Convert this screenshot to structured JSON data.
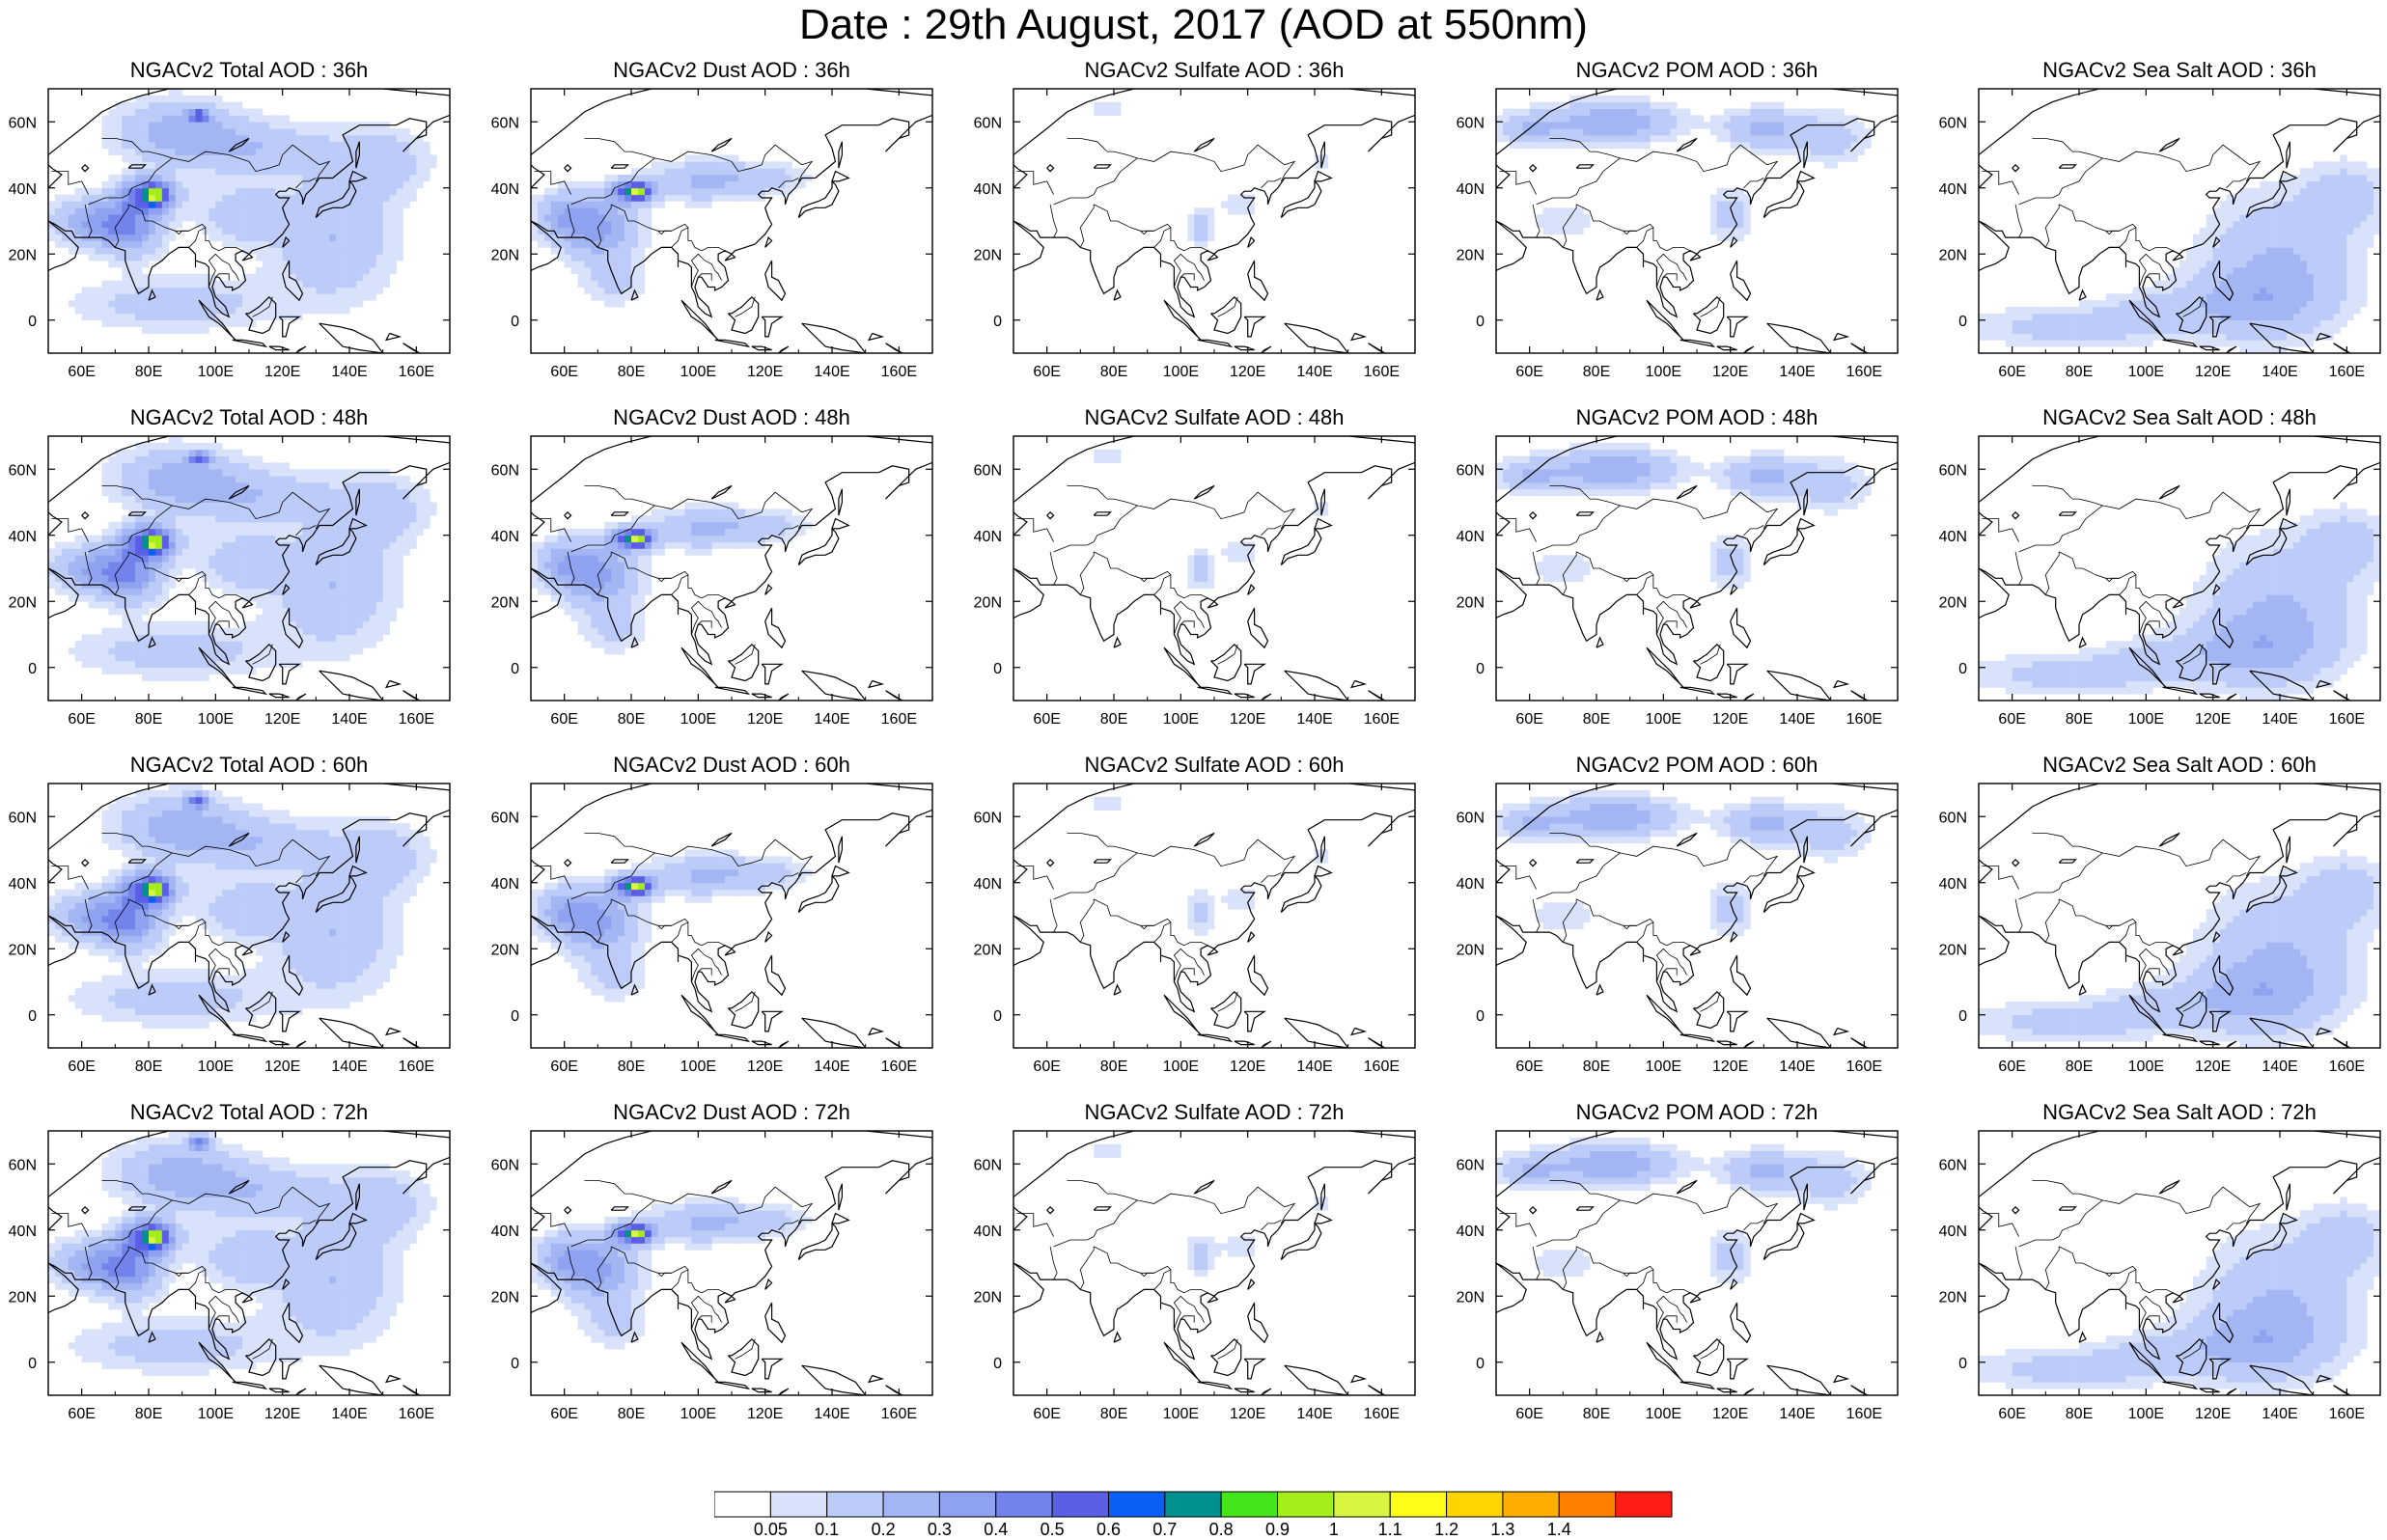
{
  "title": "Date : 29th August, 2017 (AOD at 550nm)",
  "panels": [
    {
      "title": "NGACv2 Total AOD : 36h",
      "species": "total"
    },
    {
      "title": "NGACv2 Dust AOD : 36h",
      "species": "dust"
    },
    {
      "title": "NGACv2 Sulfate AOD : 36h",
      "species": "sulfate"
    },
    {
      "title": "NGACv2 POM AOD : 36h",
      "species": "pom"
    },
    {
      "title": "NGACv2 Sea Salt AOD : 36h",
      "species": "seasalt"
    },
    {
      "title": "NGACv2 Total AOD : 48h",
      "species": "total"
    },
    {
      "title": "NGACv2 Dust AOD : 48h",
      "species": "dust"
    },
    {
      "title": "NGACv2 Sulfate AOD : 48h",
      "species": "sulfate"
    },
    {
      "title": "NGACv2 POM AOD : 48h",
      "species": "pom"
    },
    {
      "title": "NGACv2 Sea Salt AOD : 48h",
      "species": "seasalt"
    },
    {
      "title": "NGACv2 Total AOD : 60h",
      "species": "total"
    },
    {
      "title": "NGACv2 Dust AOD : 60h",
      "species": "dust"
    },
    {
      "title": "NGACv2 Sulfate AOD : 60h",
      "species": "sulfate"
    },
    {
      "title": "NGACv2 POM AOD : 60h",
      "species": "pom"
    },
    {
      "title": "NGACv2 Sea Salt AOD : 60h",
      "species": "seasalt"
    },
    {
      "title": "NGACv2 Total AOD : 72h",
      "species": "total"
    },
    {
      "title": "NGACv2 Dust AOD : 72h",
      "species": "dust"
    },
    {
      "title": "NGACv2 Sulfate AOD : 72h",
      "species": "sulfate"
    },
    {
      "title": "NGACv2 POM AOD : 72h",
      "species": "pom"
    },
    {
      "title": "NGACv2 Sea Salt  AOD : 72h",
      "species": "seasalt"
    }
  ],
  "map_extent": {
    "lon": [
      50,
      170
    ],
    "lat": [
      -10,
      70
    ]
  },
  "lon_ticks": [
    60,
    80,
    100,
    120,
    140,
    160
  ],
  "lon_tick_labels": [
    "60E",
    "80E",
    "100E",
    "120E",
    "140E",
    "160E"
  ],
  "lat_ticks": [
    0,
    20,
    40,
    60
  ],
  "lat_tick_labels": [
    "0",
    "20N",
    "40N",
    "60N"
  ],
  "colorbar": {
    "levels": [
      "0.05",
      "0.1",
      "0.2",
      "0.3",
      "0.4",
      "0.5",
      "0.6",
      "0.7",
      "0.8",
      "0.9",
      "1",
      "1.1",
      "1.2",
      "1.3",
      "1.4"
    ],
    "colors": [
      "#ffffff",
      "#d9e2fb",
      "#bccbf7",
      "#a3b6f3",
      "#8ea2ef",
      "#7383ec",
      "#5b5fe6",
      "#0a5ff6",
      "#00908f",
      "#44e619",
      "#a3ee18",
      "#d9f542",
      "#fffd1a",
      "#ffd400",
      "#ffad00",
      "#ff7f00",
      "#ff1d14"
    ]
  }
}
